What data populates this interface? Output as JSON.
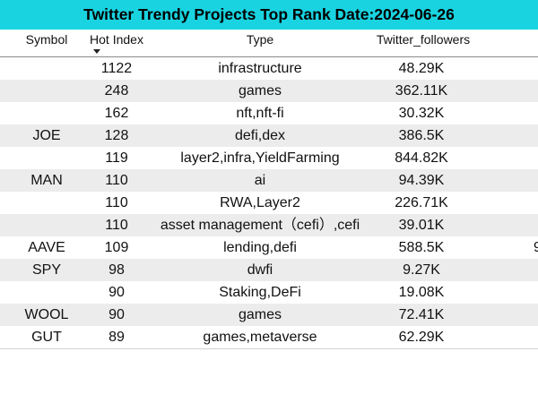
{
  "title": "Twitter Trendy Projects Top Rank Date:2024-06-26",
  "columns": {
    "symbol": "Symbol",
    "hot_index": "Hot Index",
    "type": "Type",
    "twitter_followers": "Twitter_followers"
  },
  "sort": {
    "column": "hot_index",
    "direction": "descending"
  },
  "rows": [
    {
      "symbol": "",
      "hot_index": "1122",
      "type": "infrastructure",
      "followers": "48.29K"
    },
    {
      "symbol": "",
      "hot_index": "248",
      "type": "games",
      "followers": "362.11K"
    },
    {
      "symbol": "",
      "hot_index": "162",
      "type": "nft,nft-fi",
      "followers": "30.32K"
    },
    {
      "symbol": "JOE",
      "hot_index": "128",
      "type": "defi,dex",
      "followers": "386.5K"
    },
    {
      "symbol": "",
      "hot_index": "119",
      "type": "layer2,infra,YieldFarming",
      "followers": "844.82K"
    },
    {
      "symbol": "MAN",
      "hot_index": "110",
      "type": "ai",
      "followers": "94.39K"
    },
    {
      "symbol": "",
      "hot_index": "110",
      "type": "RWA,Layer2",
      "followers": "226.71K"
    },
    {
      "symbol": "",
      "hot_index": "110",
      "type": "asset management（cefi）,cefi",
      "followers": "39.01K"
    },
    {
      "symbol": "AAVE",
      "hot_index": "109",
      "type": "lending,defi",
      "followers": "588.5K",
      "edge": "9"
    },
    {
      "symbol": "SPY",
      "hot_index": "98",
      "type": "dwfi",
      "followers": "9.27K"
    },
    {
      "symbol": "",
      "hot_index": "90",
      "type": "Staking,DeFi",
      "followers": "19.08K"
    },
    {
      "symbol": "WOOL",
      "hot_index": "90",
      "type": "games",
      "followers": "72.41K"
    },
    {
      "symbol": "GUT",
      "hot_index": "89",
      "type": "games,metaverse",
      "followers": "62.29K"
    }
  ],
  "colors": {
    "title_background": "#19d3e0",
    "alternate_row": "#ececec",
    "header_border": "#8a8a8a"
  },
  "icons": {
    "sort": "sort-descending-icon"
  }
}
